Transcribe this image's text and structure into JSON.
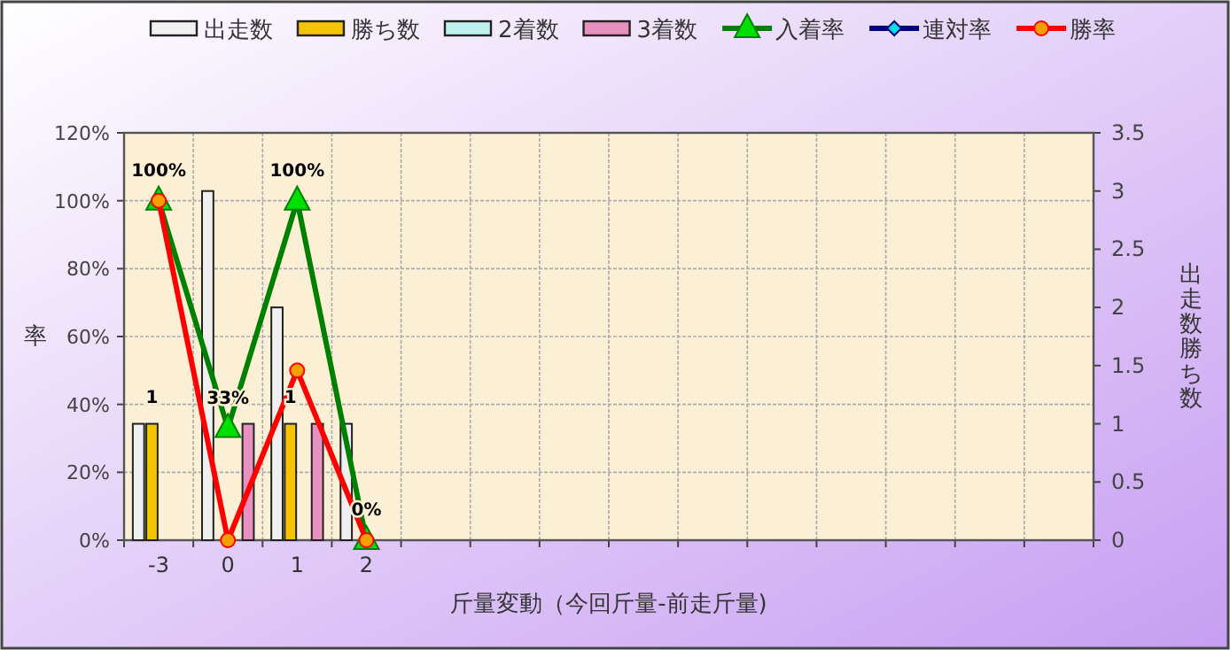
{
  "chart_data": {
    "type": "bar",
    "xlabel": "斤量変動（今回斤量-前走斤量)",
    "ylabel": "率",
    "y2label": "出走数勝ち数",
    "categories": [
      "-3",
      "0",
      "1",
      "2",
      null,
      null,
      null,
      null,
      null,
      null,
      null,
      null,
      null,
      null
    ],
    "ylim": [
      0,
      120
    ],
    "yticks": [
      {
        "value": 0,
        "label": "0%"
      },
      {
        "value": 20,
        "label": "20%"
      },
      {
        "value": 40,
        "label": "40%"
      },
      {
        "value": 60,
        "label": "60%"
      },
      {
        "value": 80,
        "label": "80%"
      },
      {
        "value": 100,
        "label": "100%"
      },
      {
        "value": 120,
        "label": "120%"
      }
    ],
    "y2lim": [
      0,
      3.5
    ],
    "y2ticks": [
      0,
      0.5,
      1,
      1.5,
      2,
      2.5,
      3,
      3.5
    ],
    "grid": true,
    "legend": "top",
    "series": [
      {
        "name": "出走数",
        "axis": "y2",
        "color": "#f0f0f0",
        "values": [
          1,
          3,
          2,
          1,
          null,
          null,
          null,
          null,
          null,
          null,
          null,
          null,
          null,
          null
        ]
      },
      {
        "name": "勝ち数",
        "axis": "y2",
        "color": "#f5c400",
        "values": [
          1,
          0,
          1,
          0,
          null,
          null,
          null,
          null,
          null,
          null,
          null,
          null,
          null,
          null
        ],
        "value_labels": [
          "1",
          null,
          "1",
          null,
          null,
          null,
          null,
          null,
          null,
          null,
          null,
          null,
          null,
          null
        ]
      },
      {
        "name": "2着数",
        "axis": "y2",
        "color": "#bff0f0",
        "values": [
          0,
          0,
          0,
          0,
          null,
          null,
          null,
          null,
          null,
          null,
          null,
          null,
          null,
          null
        ]
      },
      {
        "name": "3着数",
        "axis": "y2",
        "color": "#e890c0",
        "values": [
          0,
          1,
          1,
          0,
          null,
          null,
          null,
          null,
          null,
          null,
          null,
          null,
          null,
          null
        ]
      },
      {
        "name": "入着率",
        "type": "line",
        "axis": "y",
        "color": "#008000",
        "marker": "triangle",
        "values": [
          100,
          33,
          100,
          0,
          null,
          null,
          null,
          null,
          null,
          null,
          null,
          null,
          null,
          null
        ],
        "value_labels": [
          "100%",
          "33%",
          "100%",
          "0%",
          null,
          null,
          null,
          null,
          null,
          null,
          null,
          null,
          null,
          null
        ]
      },
      {
        "name": "連対率",
        "type": "line",
        "axis": "y",
        "color": "#000080",
        "marker": "diamond",
        "values": [
          null,
          null,
          null,
          null,
          null,
          null,
          null,
          null,
          null,
          null,
          null,
          null,
          null,
          null
        ]
      },
      {
        "name": "勝率",
        "type": "line",
        "axis": "y",
        "color": "#ff0000",
        "marker": "circle",
        "values": [
          100,
          0,
          50,
          0,
          null,
          null,
          null,
          null,
          null,
          null,
          null,
          null,
          null,
          null
        ]
      }
    ]
  }
}
